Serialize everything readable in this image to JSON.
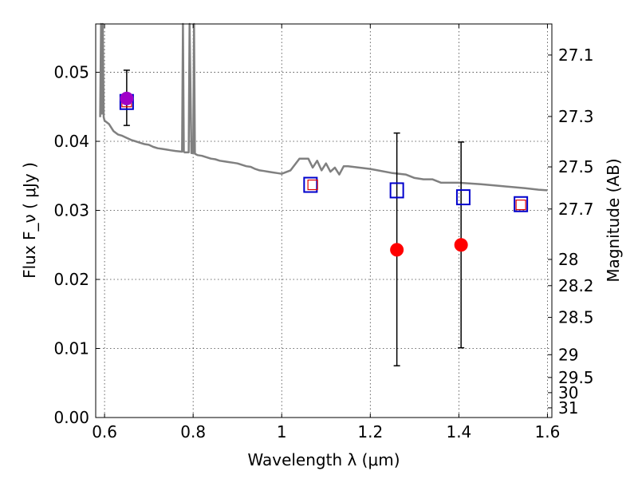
{
  "chart_data": {
    "type": "scatter",
    "title": "",
    "xlabel": "Wavelength  λ (μm)",
    "ylabel": "Flux  F_ν  ( μJy )",
    "ylabel_right": "Magnitude (AB)",
    "xlim": [
      0.58,
      1.61
    ],
    "ylim": [
      0.0,
      0.057
    ],
    "grid": true,
    "x_ticks": [
      0.6,
      0.8,
      1.0,
      1.2,
      1.4,
      1.6
    ],
    "x_tick_labels": [
      "0.6",
      "0.8",
      "1",
      "1.2",
      "1.4",
      "1.6"
    ],
    "y_ticks": [
      0.0,
      0.01,
      0.02,
      0.03,
      0.04,
      0.05
    ],
    "y_tick_labels": [
      "0.00",
      "0.01",
      "0.02",
      "0.03",
      "0.04",
      "0.05"
    ],
    "right_ticks": [
      {
        "label": "27.1",
        "flux": 0.0525
      },
      {
        "label": "27.3",
        "flux": 0.0436
      },
      {
        "label": "27.5",
        "flux": 0.0363
      },
      {
        "label": "27.7",
        "flux": 0.0302
      },
      {
        "label": "28",
        "flux": 0.0229
      },
      {
        "label": "28.2",
        "flux": 0.0191
      },
      {
        "label": "28.5",
        "flux": 0.0145
      },
      {
        "label": "29",
        "flux": 0.0091
      },
      {
        "label": "29.5",
        "flux": 0.0058
      },
      {
        "label": "30",
        "flux": 0.0036
      },
      {
        "label": "31",
        "flux": 0.0014
      }
    ],
    "colors": {
      "model_line": "#808080",
      "observed": "#ff0000",
      "observed_first": "#a000c8",
      "model_square": "#0000cc",
      "model_square_small": "#dd0000",
      "errorbar": "#000000"
    },
    "series": [
      {
        "role": "model_spectrum",
        "x": [
          0.59,
          0.592,
          0.594,
          0.596,
          0.598,
          0.6,
          0.61,
          0.62,
          0.63,
          0.64,
          0.65,
          0.66,
          0.67,
          0.68,
          0.69,
          0.7,
          0.71,
          0.72,
          0.73,
          0.74,
          0.75,
          0.76,
          0.775,
          0.777,
          0.779,
          0.781,
          0.79,
          0.792,
          0.796,
          0.8,
          0.802,
          0.804,
          0.81,
          0.82,
          0.83,
          0.84,
          0.85,
          0.86,
          0.87,
          0.88,
          0.89,
          0.9,
          0.91,
          0.92,
          0.93,
          0.94,
          0.95,
          0.96,
          0.97,
          0.98,
          0.99,
          1.0,
          1.02,
          1.04,
          1.06,
          1.07,
          1.08,
          1.09,
          1.1,
          1.11,
          1.12,
          1.13,
          1.14,
          1.15,
          1.2,
          1.25,
          1.28,
          1.3,
          1.32,
          1.34,
          1.36,
          1.4,
          1.45,
          1.5,
          1.55,
          1.58,
          1.6
        ],
        "y": [
          0.0435,
          0.057,
          0.044,
          0.057,
          0.0435,
          0.043,
          0.0425,
          0.0415,
          0.041,
          0.0408,
          0.0405,
          0.0402,
          0.04,
          0.0398,
          0.0396,
          0.0395,
          0.0392,
          0.039,
          0.0389,
          0.0388,
          0.0387,
          0.0386,
          0.0385,
          0.057,
          0.0385,
          0.0384,
          0.0384,
          0.057,
          0.0383,
          0.0383,
          0.057,
          0.0382,
          0.038,
          0.0379,
          0.0377,
          0.0375,
          0.0374,
          0.0372,
          0.0371,
          0.037,
          0.0369,
          0.0368,
          0.0366,
          0.0364,
          0.0363,
          0.036,
          0.0358,
          0.0357,
          0.0356,
          0.0355,
          0.0354,
          0.0353,
          0.0358,
          0.0375,
          0.0375,
          0.0362,
          0.0372,
          0.0358,
          0.0368,
          0.0356,
          0.0362,
          0.0352,
          0.0364,
          0.0364,
          0.036,
          0.0354,
          0.0352,
          0.0347,
          0.0345,
          0.0345,
          0.034,
          0.034,
          0.0338,
          0.0335,
          0.0332,
          0.033,
          0.0329
        ]
      },
      {
        "role": "observed_flux",
        "x": [
          0.65,
          1.26,
          1.405
        ],
        "y": [
          0.0462,
          0.0243,
          0.025
        ]
      },
      {
        "role": "observed_errorbars",
        "x": [
          0.65,
          1.26,
          1.405
        ],
        "ylow": [
          0.0423,
          0.0075,
          0.0101
        ],
        "yhigh": [
          0.0503,
          0.0412,
          0.0399
        ]
      },
      {
        "role": "model_photometry_large",
        "x": [
          0.65,
          1.065,
          1.26,
          1.41,
          1.54
        ],
        "y": [
          0.0457,
          0.0337,
          0.0329,
          0.0319,
          0.0309
        ]
      },
      {
        "role": "model_photometry_small",
        "x": [
          0.65,
          1.07,
          1.54
        ],
        "y": [
          0.0457,
          0.0337,
          0.0308
        ]
      }
    ]
  }
}
